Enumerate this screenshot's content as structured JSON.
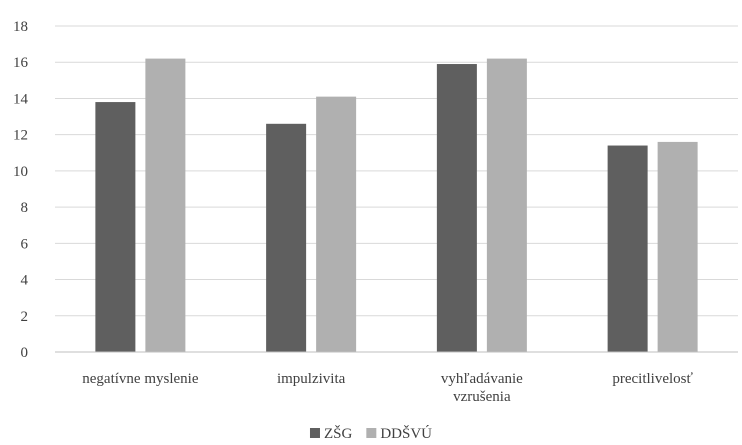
{
  "chart_data": {
    "type": "bar",
    "categories": [
      [
        "negatívne myslenie"
      ],
      [
        "impulzivita"
      ],
      [
        "vyhľadávanie",
        "vzrušenia"
      ],
      [
        "precitlivelosť"
      ]
    ],
    "series": [
      {
        "name": "ZŠG",
        "values": [
          13.8,
          12.6,
          15.9,
          11.4
        ],
        "color": "#5f5f5f"
      },
      {
        "name": "DDŠVÚ",
        "values": [
          16.2,
          14.1,
          16.2,
          11.6
        ],
        "color": "#b0b0b0"
      }
    ],
    "ylim": [
      0,
      18
    ],
    "yticks": [
      0,
      2,
      4,
      6,
      8,
      10,
      12,
      14,
      16,
      18
    ],
    "grid": true,
    "legend_position": "bottom",
    "title": "",
    "xlabel": "",
    "ylabel": ""
  }
}
